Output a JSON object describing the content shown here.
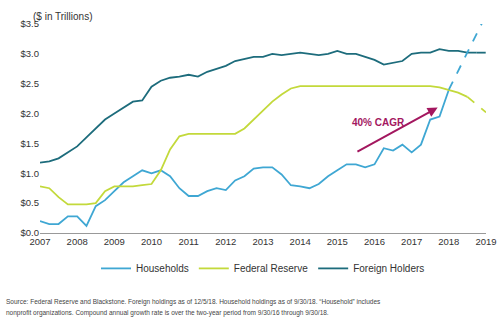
{
  "chart_data": {
    "type": "line",
    "y_label": "($ in Trillions)",
    "annotation": "40% CAGR",
    "source": [
      "Source: Federal Reserve and Blackstone. Foreign holdings as of 12/5/18. Household holdings as of 9/30/18. “Household” includes",
      "nonprofit organizations. Compound annual growth rate is over the two-year period from 9/30/16 through 9/30/18."
    ],
    "x": [
      2007,
      2007.25,
      2007.5,
      2007.75,
      2008,
      2008.25,
      2008.5,
      2008.75,
      2009,
      2009.25,
      2009.5,
      2009.75,
      2010,
      2010.25,
      2010.5,
      2010.75,
      2011,
      2011.25,
      2011.5,
      2011.75,
      2012,
      2012.25,
      2012.5,
      2012.75,
      2013,
      2013.25,
      2013.5,
      2013.75,
      2014,
      2014.25,
      2014.5,
      2014.75,
      2015,
      2015.25,
      2015.5,
      2015.75,
      2016,
      2016.25,
      2016.5,
      2016.75,
      2017,
      2017.25,
      2017.5,
      2017.75,
      2018,
      2018.25,
      2018.5,
      2018.75,
      2019
    ],
    "series": [
      {
        "name": "Households",
        "color": "#3fa7d3",
        "values": [
          0.2,
          0.15,
          0.15,
          0.28,
          0.28,
          0.12,
          0.45,
          0.55,
          0.7,
          0.85,
          0.95,
          1.05,
          1.0,
          1.05,
          0.95,
          0.75,
          0.62,
          0.62,
          0.7,
          0.75,
          0.72,
          0.88,
          0.95,
          1.08,
          1.1,
          1.1,
          0.98,
          0.8,
          0.78,
          0.75,
          0.82,
          0.95,
          1.05,
          1.15,
          1.15,
          1.1,
          1.15,
          1.42,
          1.38,
          1.48,
          1.35,
          1.48,
          1.9,
          1.95,
          2.4,
          null,
          null,
          null,
          null
        ],
        "projection": [
          null,
          null,
          null,
          null,
          null,
          null,
          null,
          null,
          null,
          null,
          null,
          null,
          null,
          null,
          null,
          null,
          null,
          null,
          null,
          null,
          null,
          null,
          null,
          null,
          null,
          null,
          null,
          null,
          null,
          null,
          null,
          null,
          null,
          null,
          null,
          null,
          null,
          null,
          null,
          null,
          null,
          null,
          null,
          null,
          2.4,
          null,
          null,
          null,
          3.65
        ]
      },
      {
        "name": "Federal Reserve",
        "color": "#c3d93b",
        "values": [
          0.78,
          0.75,
          0.6,
          0.48,
          0.48,
          0.48,
          0.5,
          0.7,
          0.78,
          0.78,
          0.78,
          0.8,
          0.82,
          1.05,
          1.4,
          1.62,
          1.66,
          1.66,
          1.66,
          1.66,
          1.66,
          1.66,
          1.75,
          1.9,
          2.05,
          2.2,
          2.32,
          2.42,
          2.46,
          2.46,
          2.46,
          2.46,
          2.46,
          2.46,
          2.46,
          2.46,
          2.46,
          2.46,
          2.46,
          2.46,
          2.46,
          2.46,
          2.46,
          2.44,
          2.4,
          2.35,
          2.28,
          null,
          null
        ],
        "projection": [
          null,
          null,
          null,
          null,
          null,
          null,
          null,
          null,
          null,
          null,
          null,
          null,
          null,
          null,
          null,
          null,
          null,
          null,
          null,
          null,
          null,
          null,
          null,
          null,
          null,
          null,
          null,
          null,
          null,
          null,
          null,
          null,
          null,
          null,
          null,
          null,
          null,
          null,
          null,
          null,
          null,
          null,
          null,
          null,
          null,
          null,
          2.28,
          null,
          2.02
        ]
      },
      {
        "name": "Foreign Holders",
        "color": "#1d6c7c",
        "values": [
          1.18,
          1.2,
          1.25,
          1.35,
          1.45,
          1.6,
          1.75,
          1.9,
          2.0,
          2.1,
          2.2,
          2.22,
          2.45,
          2.55,
          2.6,
          2.62,
          2.65,
          2.62,
          2.7,
          2.75,
          2.8,
          2.88,
          2.92,
          2.95,
          2.95,
          3.0,
          2.98,
          3.0,
          3.02,
          3.0,
          2.98,
          3.0,
          3.05,
          3.0,
          3.0,
          2.95,
          2.9,
          2.82,
          2.85,
          2.88,
          3.0,
          3.02,
          3.02,
          3.08,
          3.05,
          3.05,
          3.02,
          3.02,
          null
        ],
        "projection": [
          null,
          null,
          null,
          null,
          null,
          null,
          null,
          null,
          null,
          null,
          null,
          null,
          null,
          null,
          null,
          null,
          null,
          null,
          null,
          null,
          null,
          null,
          null,
          null,
          null,
          null,
          null,
          null,
          null,
          null,
          null,
          null,
          null,
          null,
          null,
          null,
          null,
          null,
          null,
          null,
          null,
          null,
          null,
          null,
          null,
          null,
          null,
          3.02,
          3.02
        ]
      }
    ],
    "xlim": [
      2007,
      2019
    ],
    "xticks": [
      2007,
      2008,
      2009,
      2010,
      2011,
      2012,
      2013,
      2014,
      2015,
      2016,
      2017,
      2018,
      2019
    ],
    "ylim": [
      0,
      3.5
    ],
    "yticks": [
      {
        "value": 0,
        "label": "$0.0"
      },
      {
        "value": 0.5,
        "label": "$0.5"
      },
      {
        "value": 1,
        "label": "$1.0"
      },
      {
        "value": 1.5,
        "label": "$1.5"
      },
      {
        "value": 2,
        "label": "$2.0"
      },
      {
        "value": 2.5,
        "label": "$2.5"
      },
      {
        "value": 3,
        "label": "$3.0"
      },
      {
        "value": 3.5,
        "label": "$3.5"
      }
    ],
    "grid": false,
    "legend": "bottom"
  }
}
